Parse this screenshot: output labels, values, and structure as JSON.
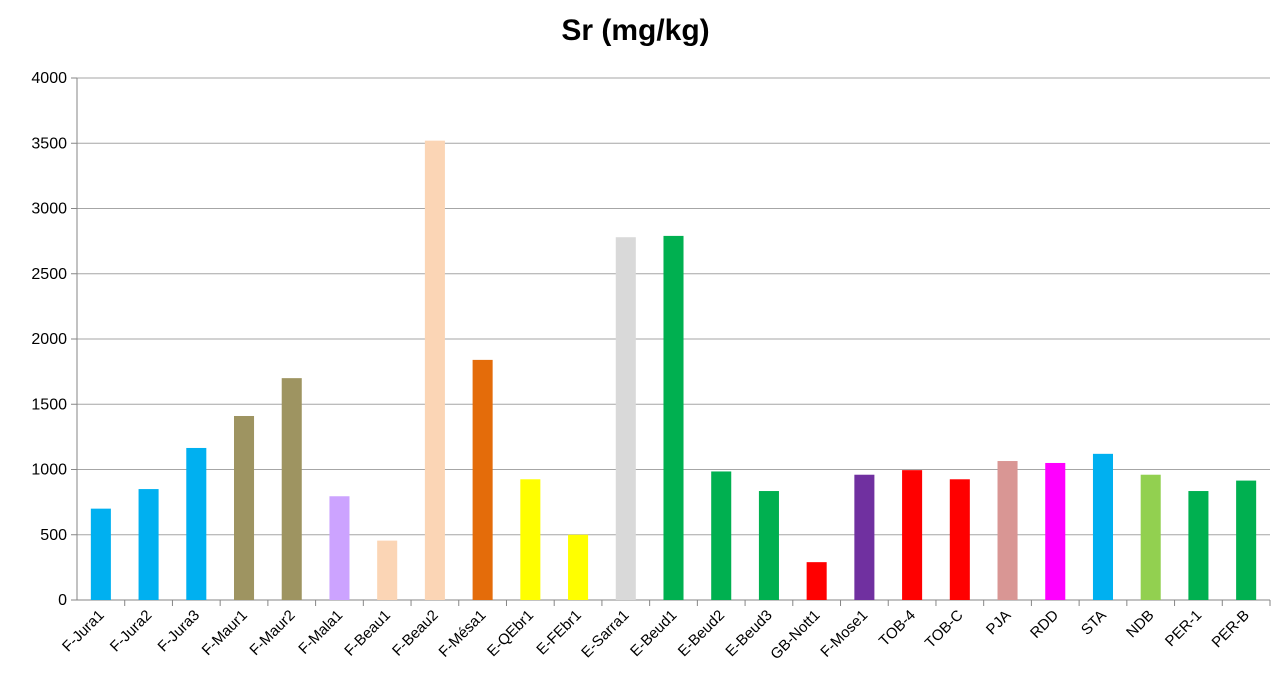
{
  "chart_data": {
    "type": "bar",
    "title": "Sr (mg/kg)",
    "xlabel": "",
    "ylabel": "",
    "ylim": [
      0,
      4000
    ],
    "yticks": [
      0,
      500,
      1000,
      1500,
      2000,
      2500,
      3000,
      3500,
      4000
    ],
    "grid": true,
    "legend": "none",
    "categories": [
      "F-Jura1",
      "F-Jura2",
      "F-Jura3",
      "F-Maur1",
      "F-Maur2",
      "F-Mala1",
      "F-Beau1",
      "F-Beau2",
      "F-Mésa1",
      "E-QEbr1",
      "E-FEbr1",
      "E-Sarra1",
      "E-Beud1",
      "E-Beud2",
      "E-Beud3",
      "GB-Nott1",
      "F-Mose1",
      "TOB-4",
      "TOB-C",
      "PJA",
      "RDD",
      "STA",
      "NDB",
      "PER-1",
      "PER-B"
    ],
    "values": [
      700,
      850,
      1165,
      1410,
      1700,
      795,
      455,
      3520,
      1840,
      925,
      500,
      2780,
      2790,
      985,
      835,
      290,
      960,
      995,
      925,
      1065,
      1050,
      1120,
      960,
      835,
      915
    ],
    "colors": [
      "#00B0F0",
      "#00B0F0",
      "#00B0F0",
      "#9E9461",
      "#9E9461",
      "#CCA3FF",
      "#FBD5B5",
      "#FBD5B5",
      "#E46C0A",
      "#FFFF00",
      "#FFFF00",
      "#D9D9D9",
      "#00B050",
      "#00B050",
      "#00B050",
      "#FF0000",
      "#7030A0",
      "#FF0000",
      "#FF0000",
      "#D99694",
      "#FF00FF",
      "#00B0F0",
      "#92D050",
      "#00B050",
      "#00B050"
    ]
  }
}
